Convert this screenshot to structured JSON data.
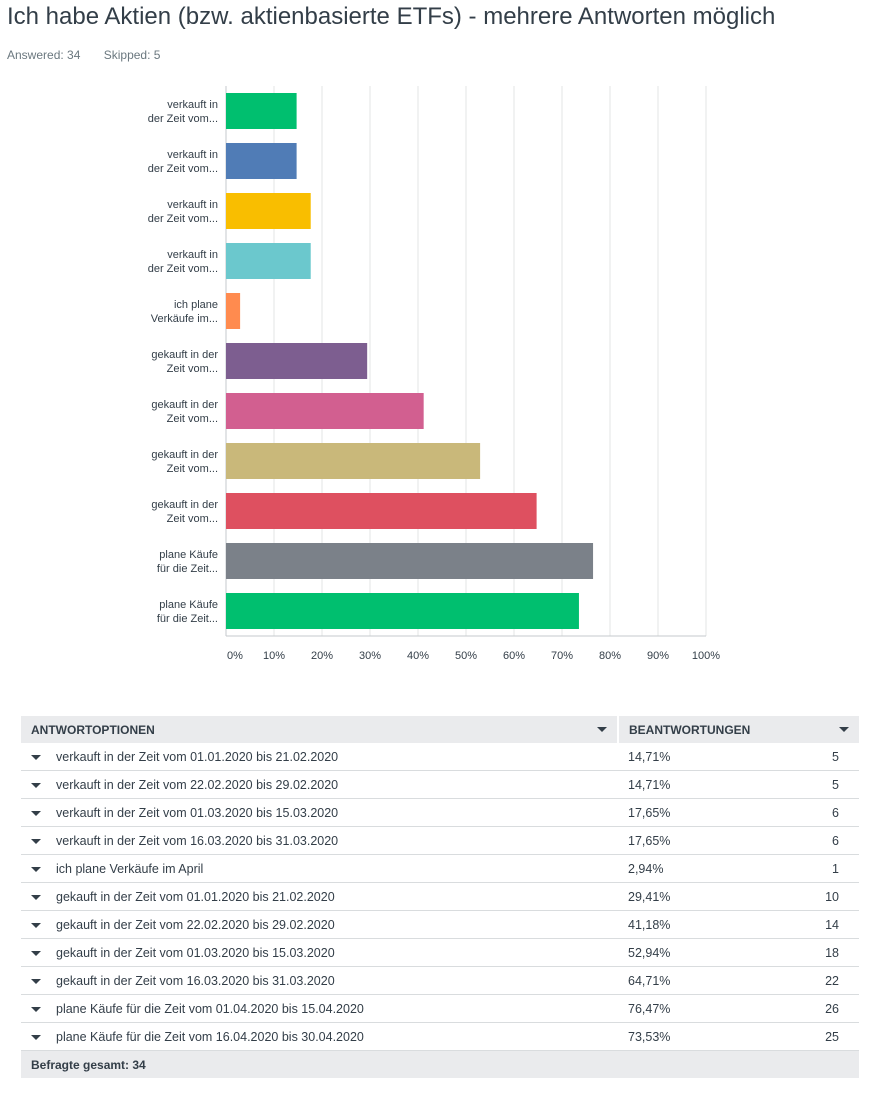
{
  "title": "Ich habe Aktien (bzw. aktienbasierte ETFs) - mehrere Antworten möglich",
  "stats": {
    "answered": "Answered: 34",
    "skipped": "Skipped: 5"
  },
  "chart_data": {
    "type": "bar",
    "orientation": "horizontal",
    "categories": [
      [
        "verkauft in",
        "der Zeit vom..."
      ],
      [
        "verkauft in",
        "der Zeit vom..."
      ],
      [
        "verkauft in",
        "der Zeit vom..."
      ],
      [
        "verkauft in",
        "der Zeit vom..."
      ],
      [
        "ich plane",
        "Verkäufe im..."
      ],
      [
        "gekauft in der",
        "Zeit vom..."
      ],
      [
        "gekauft in der",
        "Zeit vom..."
      ],
      [
        "gekauft in der",
        "Zeit vom..."
      ],
      [
        "gekauft in der",
        "Zeit vom..."
      ],
      [
        "plane Käufe",
        "für die Zeit..."
      ],
      [
        "plane Käufe",
        "für die Zeit..."
      ]
    ],
    "values": [
      14.71,
      14.71,
      17.65,
      17.65,
      2.94,
      29.41,
      41.18,
      52.94,
      64.71,
      76.47,
      73.53
    ],
    "colors": [
      "#00bf6f",
      "#507cb6",
      "#f9be00",
      "#6bc8cd",
      "#ff8b4f",
      "#7d5e90",
      "#d25f90",
      "#c9b87a",
      "#de5060",
      "#7b8189",
      "#00bf6f"
    ],
    "xlim": [
      0,
      100
    ],
    "xticks": [
      "0%",
      "10%",
      "20%",
      "30%",
      "40%",
      "50%",
      "60%",
      "70%",
      "80%",
      "90%",
      "100%"
    ],
    "grid": true,
    "title": "",
    "xlabel": "",
    "ylabel": ""
  },
  "table": {
    "headers": {
      "option": "ANTWORTOPTIONEN",
      "responses": "BEANTWORTUNGEN"
    },
    "rows": [
      {
        "option": "verkauft in der Zeit vom 01.01.2020 bis 21.02.2020",
        "percent": "14,71%",
        "count": "5"
      },
      {
        "option": "verkauft in der Zeit vom 22.02.2020 bis 29.02.2020",
        "percent": "14,71%",
        "count": "5"
      },
      {
        "option": "verkauft in der Zeit vom 01.03.2020 bis 15.03.2020",
        "percent": "17,65%",
        "count": "6"
      },
      {
        "option": "verkauft in der Zeit vom 16.03.2020 bis 31.03.2020",
        "percent": "17,65%",
        "count": "6"
      },
      {
        "option": "ich plane Verkäufe im April",
        "percent": "2,94%",
        "count": "1"
      },
      {
        "option": "gekauft in der Zeit vom 01.01.2020 bis 21.02.2020",
        "percent": "29,41%",
        "count": "10"
      },
      {
        "option": "gekauft in der Zeit vom 22.02.2020 bis 29.02.2020",
        "percent": "41,18%",
        "count": "14"
      },
      {
        "option": "gekauft in der Zeit vom 01.03.2020 bis 15.03.2020",
        "percent": "52,94%",
        "count": "18"
      },
      {
        "option": "gekauft in der Zeit vom 16.03.2020 bis 31.03.2020",
        "percent": "64,71%",
        "count": "22"
      },
      {
        "option": "plane Käufe für die Zeit vom 01.04.2020 bis 15.04.2020",
        "percent": "76,47%",
        "count": "26"
      },
      {
        "option": "plane Käufe für die Zeit vom 16.04.2020 bis 30.04.2020",
        "percent": "73,53%",
        "count": "25"
      }
    ],
    "total": "Befragte gesamt: 34"
  }
}
